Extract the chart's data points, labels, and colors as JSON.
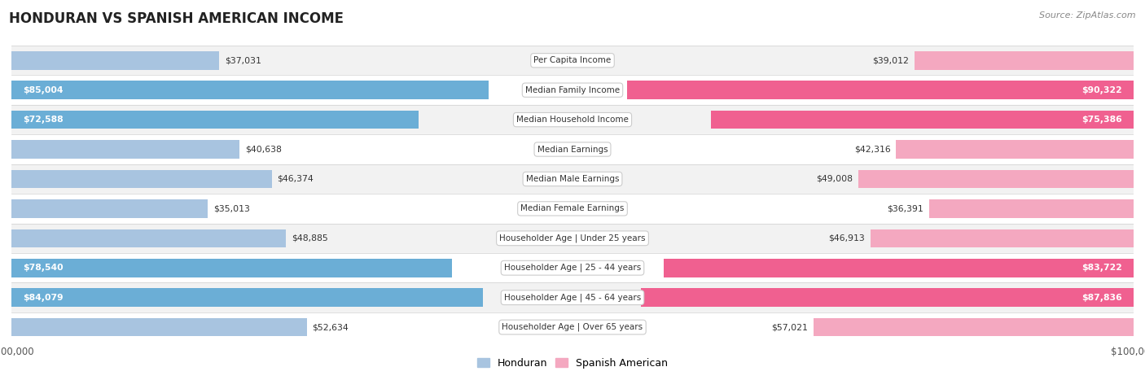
{
  "title": "HONDURAN VS SPANISH AMERICAN INCOME",
  "source": "Source: ZipAtlas.com",
  "categories": [
    "Per Capita Income",
    "Median Family Income",
    "Median Household Income",
    "Median Earnings",
    "Median Male Earnings",
    "Median Female Earnings",
    "Householder Age | Under 25 years",
    "Householder Age | 25 - 44 years",
    "Householder Age | 45 - 64 years",
    "Householder Age | Over 65 years"
  ],
  "honduran_values": [
    37031,
    85004,
    72588,
    40638,
    46374,
    35013,
    48885,
    78540,
    84079,
    52634
  ],
  "spanish_values": [
    39012,
    90322,
    75386,
    42316,
    49008,
    36391,
    46913,
    83722,
    87836,
    57021
  ],
  "honduran_labels": [
    "$37,031",
    "$85,004",
    "$72,588",
    "$40,638",
    "$46,374",
    "$35,013",
    "$48,885",
    "$78,540",
    "$84,079",
    "$52,634"
  ],
  "spanish_labels": [
    "$39,012",
    "$90,322",
    "$75,386",
    "$42,316",
    "$49,008",
    "$36,391",
    "$46,913",
    "$83,722",
    "$87,836",
    "$57,021"
  ],
  "max_value": 100000,
  "honduran_color_light": "#a8c4e0",
  "honduran_color_dark": "#6baed6",
  "spanish_color_light": "#f4a8c0",
  "spanish_color_dark": "#f06090",
  "row_bg_odd": "#f2f2f2",
  "row_bg_even": "#ffffff",
  "legend_honduran": "Honduran",
  "legend_spanish": "Spanish American",
  "threshold_dark": 60000,
  "bar_height": 0.62
}
